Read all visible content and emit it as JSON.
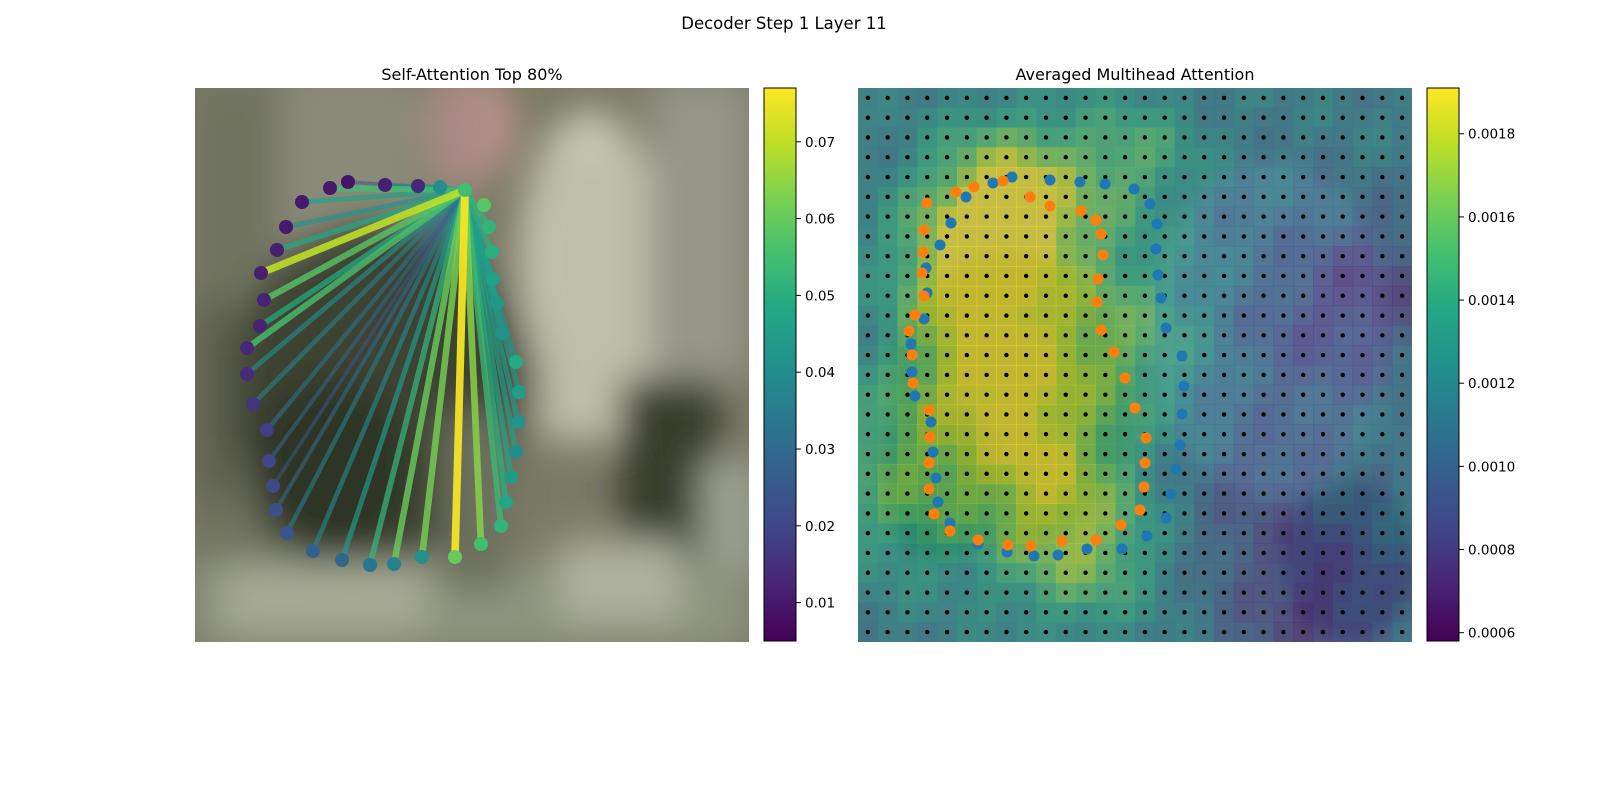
{
  "figure": {
    "suptitle": "Decoder Step 1 Layer 11"
  },
  "chart_data": [
    {
      "type": "scatter",
      "title": "Self-Attention Top 80%",
      "description": "Attention lines from one contour point (source) to other contour points over a blurred background image",
      "source_point": [
        465,
        190
      ],
      "points": [
        {
          "x": 484,
          "y": 205,
          "v": 0.058
        },
        {
          "x": 489,
          "y": 227,
          "v": 0.052
        },
        {
          "x": 492,
          "y": 252,
          "v": 0.05
        },
        {
          "x": 493,
          "y": 279,
          "v": 0.046
        },
        {
          "x": 497,
          "y": 303,
          "v": 0.043
        },
        {
          "x": 502,
          "y": 333,
          "v": 0.041
        },
        {
          "x": 516,
          "y": 362,
          "v": 0.049
        },
        {
          "x": 519,
          "y": 392,
          "v": 0.045
        },
        {
          "x": 518,
          "y": 422,
          "v": 0.042
        },
        {
          "x": 516,
          "y": 452,
          "v": 0.04
        },
        {
          "x": 511,
          "y": 477,
          "v": 0.044
        },
        {
          "x": 506,
          "y": 502,
          "v": 0.047
        },
        {
          "x": 501,
          "y": 526,
          "v": 0.052
        },
        {
          "x": 481,
          "y": 544,
          "v": 0.055
        },
        {
          "x": 455,
          "y": 557,
          "v": 0.06
        },
        {
          "x": 422,
          "y": 557,
          "v": 0.041
        },
        {
          "x": 394,
          "y": 564,
          "v": 0.036
        },
        {
          "x": 370,
          "y": 565,
          "v": 0.033
        },
        {
          "x": 342,
          "y": 560,
          "v": 0.029
        },
        {
          "x": 313,
          "y": 551,
          "v": 0.027
        },
        {
          "x": 287,
          "y": 533,
          "v": 0.024
        },
        {
          "x": 276,
          "y": 510,
          "v": 0.022
        },
        {
          "x": 273,
          "y": 486,
          "v": 0.021
        },
        {
          "x": 269,
          "y": 461,
          "v": 0.02
        },
        {
          "x": 267,
          "y": 430,
          "v": 0.018
        },
        {
          "x": 253,
          "y": 404,
          "v": 0.016
        },
        {
          "x": 247,
          "y": 374,
          "v": 0.014
        },
        {
          "x": 247,
          "y": 348,
          "v": 0.013
        },
        {
          "x": 260,
          "y": 326,
          "v": 0.012
        },
        {
          "x": 264,
          "y": 300,
          "v": 0.012
        },
        {
          "x": 261,
          "y": 273,
          "v": 0.011
        },
        {
          "x": 277,
          "y": 250,
          "v": 0.011
        },
        {
          "x": 286,
          "y": 227,
          "v": 0.01
        },
        {
          "x": 302,
          "y": 202,
          "v": 0.01
        },
        {
          "x": 330,
          "y": 188,
          "v": 0.01
        },
        {
          "x": 348,
          "y": 182,
          "v": 0.009
        },
        {
          "x": 385,
          "y": 185,
          "v": 0.011
        },
        {
          "x": 418,
          "y": 186,
          "v": 0.013
        },
        {
          "x": 440,
          "y": 187,
          "v": 0.04
        },
        {
          "x": 465,
          "y": 190,
          "v": 0.055
        }
      ],
      "links": [
        {
          "to": 14,
          "w": 0.076
        },
        {
          "to": 30,
          "w": 0.07
        },
        {
          "to": 13,
          "w": 0.064
        },
        {
          "to": 15,
          "w": 0.062
        },
        {
          "to": 16,
          "w": 0.06
        },
        {
          "to": 29,
          "w": 0.058
        },
        {
          "to": 27,
          "w": 0.056
        },
        {
          "to": 34,
          "w": 0.055
        },
        {
          "to": 12,
          "w": 0.054
        },
        {
          "to": 17,
          "w": 0.052
        },
        {
          "to": 1,
          "w": 0.052
        },
        {
          "to": 11,
          "w": 0.05
        },
        {
          "to": 2,
          "w": 0.05
        },
        {
          "to": 28,
          "w": 0.049
        },
        {
          "to": 31,
          "w": 0.048
        },
        {
          "to": 10,
          "w": 0.047
        },
        {
          "to": 3,
          "w": 0.046
        },
        {
          "to": 33,
          "w": 0.046
        },
        {
          "to": 9,
          "w": 0.045
        },
        {
          "to": 4,
          "w": 0.045
        },
        {
          "to": 8,
          "w": 0.044
        },
        {
          "to": 18,
          "w": 0.044
        },
        {
          "to": 5,
          "w": 0.043
        },
        {
          "to": 7,
          "w": 0.043
        },
        {
          "to": 6,
          "w": 0.042
        },
        {
          "to": 32,
          "w": 0.042
        },
        {
          "to": 26,
          "w": 0.04
        },
        {
          "to": 36,
          "w": 0.04
        },
        {
          "to": 19,
          "w": 0.038
        },
        {
          "to": 25,
          "w": 0.036
        },
        {
          "to": 37,
          "w": 0.036
        },
        {
          "to": 20,
          "w": 0.035
        },
        {
          "to": 24,
          "w": 0.033
        },
        {
          "to": 21,
          "w": 0.03
        },
        {
          "to": 23,
          "w": 0.029
        },
        {
          "to": 22,
          "w": 0.025
        },
        {
          "to": 35,
          "w": 0.024
        },
        {
          "to": 38,
          "w": 0.022
        }
      ],
      "colorbar": {
        "min": 0.005,
        "max": 0.077,
        "ticks": [
          0.01,
          0.02,
          0.03,
          0.04,
          0.05,
          0.06,
          0.07
        ],
        "tick_labels": [
          "0.01",
          "0.02",
          "0.03",
          "0.04",
          "0.05",
          "0.06",
          "0.07"
        ],
        "colormap": "viridis"
      }
    },
    {
      "type": "heatmap",
      "title": "Averaged Multihead Attention",
      "grid_size": 28,
      "hotspots": [
        {
          "x": 0.28,
          "y": 0.2,
          "s": 0.1,
          "w": 1.0
        },
        {
          "x": 0.2,
          "y": 0.33,
          "s": 0.1,
          "w": 0.85
        },
        {
          "x": 0.24,
          "y": 0.52,
          "s": 0.1,
          "w": 0.75
        },
        {
          "x": 0.45,
          "y": 0.45,
          "s": 0.13,
          "w": 0.6
        },
        {
          "x": 0.4,
          "y": 0.83,
          "s": 0.1,
          "w": 0.7
        },
        {
          "x": 0.1,
          "y": 0.7,
          "s": 0.12,
          "w": 0.6
        },
        {
          "x": 0.33,
          "y": 0.68,
          "s": 0.09,
          "w": 0.55
        },
        {
          "x": 0.5,
          "y": 0.12,
          "s": 0.08,
          "w": 0.45
        }
      ],
      "coldspots": [
        {
          "x": 0.82,
          "y": 0.95,
          "s": 0.12,
          "w": 0.55
        },
        {
          "x": 0.95,
          "y": 0.35,
          "s": 0.09,
          "w": 0.45
        },
        {
          "x": 0.8,
          "y": 0.45,
          "s": 0.12,
          "w": 0.35
        },
        {
          "x": 0.7,
          "y": 0.75,
          "s": 0.1,
          "w": 0.3
        }
      ],
      "series": [
        {
          "name": "",
          "color": "#1f77b4",
          "points": [
            [
              1012,
              177
            ],
            [
              993,
              183
            ],
            [
              966,
              197
            ],
            [
              951,
              223
            ],
            [
              940,
              245
            ],
            [
              926,
              268
            ],
            [
              927,
              293
            ],
            [
              924,
              319
            ],
            [
              911,
              344
            ],
            [
              912,
              372
            ],
            [
              915,
              396
            ],
            [
              931,
              422
            ],
            [
              933,
              452
            ],
            [
              936,
              478
            ],
            [
              938,
              502
            ],
            [
              950,
              523
            ],
            [
              978,
              544
            ],
            [
              1007,
              552
            ],
            [
              1034,
              556
            ],
            [
              1058,
              555
            ],
            [
              1087,
              549
            ],
            [
              1122,
              549
            ],
            [
              1147,
              536
            ],
            [
              1166,
              518
            ],
            [
              1171,
              494
            ],
            [
              1176,
              469
            ],
            [
              1180,
              445
            ],
            [
              1182,
              414
            ],
            [
              1184,
              386
            ],
            [
              1182,
              356
            ],
            [
              1166,
              328
            ],
            [
              1161,
              298
            ],
            [
              1158,
              275
            ],
            [
              1156,
              249
            ],
            [
              1157,
              224
            ],
            [
              1150,
              204
            ],
            [
              1134,
              189
            ],
            [
              1105,
              184
            ],
            [
              1080,
              182
            ],
            [
              1050,
              180
            ]
          ]
        },
        {
          "name": "",
          "color": "#ff7f0e",
          "points": [
            [
              1003,
              181
            ],
            [
              974,
              187
            ],
            [
              956,
              192
            ],
            [
              927,
              203
            ],
            [
              924,
              230
            ],
            [
              923,
              252
            ],
            [
              922,
              273
            ],
            [
              924,
              296
            ],
            [
              915,
              315
            ],
            [
              909,
              331
            ],
            [
              912,
              355
            ],
            [
              913,
              383
            ],
            [
              929,
              410
            ],
            [
              930,
              437
            ],
            [
              929,
              463
            ],
            [
              929,
              489
            ],
            [
              934,
              514
            ],
            [
              950,
              531
            ],
            [
              978,
              540
            ],
            [
              1008,
              545
            ],
            [
              1031,
              546
            ],
            [
              1062,
              541
            ],
            [
              1096,
              540
            ],
            [
              1121,
              525
            ],
            [
              1140,
              510
            ],
            [
              1144,
              487
            ],
            [
              1145,
              463
            ],
            [
              1146,
              438
            ],
            [
              1135,
              408
            ],
            [
              1125,
              378
            ],
            [
              1114,
              352
            ],
            [
              1101,
              330
            ],
            [
              1097,
              302
            ],
            [
              1098,
              279
            ],
            [
              1103,
              255
            ],
            [
              1101,
              234
            ],
            [
              1096,
              220
            ],
            [
              1081,
              211
            ],
            [
              1050,
              206
            ],
            [
              1030,
              197
            ]
          ]
        }
      ],
      "colorbar": {
        "min": 0.00058,
        "max": 0.00191,
        "ticks": [
          0.0006,
          0.0008,
          0.001,
          0.0012,
          0.0014,
          0.0016,
          0.0018
        ],
        "tick_labels": [
          "0.0006",
          "0.0008",
          "0.0010",
          "0.0012",
          "0.0014",
          "0.0016",
          "0.0018"
        ],
        "colormap": "viridis"
      }
    }
  ]
}
